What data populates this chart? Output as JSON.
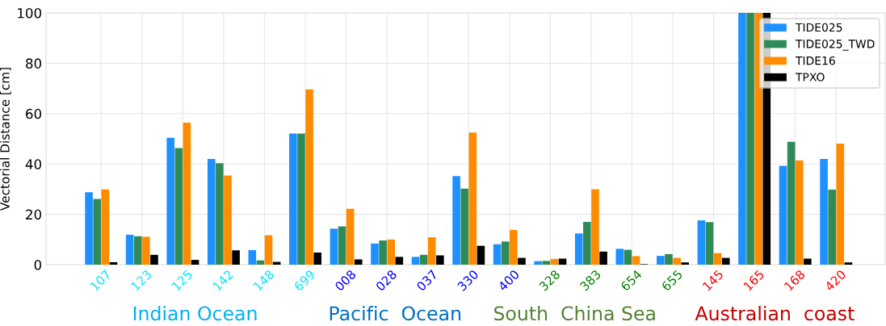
{
  "chart_data": {
    "type": "bar",
    "ylabel": "Vectorial Distance [cm]",
    "categories": [
      "107",
      "123",
      "125",
      "142",
      "148",
      "699",
      "008",
      "028",
      "037",
      "330",
      "400",
      "328",
      "383",
      "654",
      "655",
      "145",
      "165",
      "168",
      "420"
    ],
    "series": [
      {
        "name": "TIDE025",
        "color": "#1e90ff",
        "values": [
          28.8,
          11.9,
          50.4,
          42.0,
          5.8,
          52.1,
          14.3,
          8.4,
          3.1,
          35.2,
          8.1,
          1.4,
          12.4,
          6.3,
          3.5,
          17.6,
          100,
          39.3,
          42.0
        ]
      },
      {
        "name": "TIDE025_TWD",
        "color": "#2e8b57",
        "values": [
          26.1,
          11.3,
          46.3,
          40.3,
          1.7,
          52.1,
          15.2,
          9.6,
          3.9,
          30.2,
          9.2,
          1.5,
          17.0,
          5.9,
          4.2,
          16.9,
          100,
          48.8,
          29.8
        ]
      },
      {
        "name": "TIDE16",
        "color": "#ff8c00",
        "values": [
          29.9,
          11.1,
          56.4,
          35.4,
          11.7,
          69.6,
          22.2,
          10.0,
          10.9,
          52.5,
          13.8,
          2.3,
          30.0,
          3.4,
          2.7,
          4.6,
          100,
          41.4,
          48.1
        ]
      },
      {
        "name": "TPXO",
        "color": "#000000",
        "values": [
          1.0,
          3.9,
          1.9,
          5.7,
          1.1,
          4.8,
          2.1,
          3.1,
          3.7,
          7.5,
          2.7,
          2.4,
          5.2,
          0.2,
          0.9,
          2.7,
          100,
          2.4,
          0.9
        ]
      }
    ],
    "ylim": [
      0,
      100
    ],
    "yticks": [
      0,
      20,
      40,
      60,
      80,
      100
    ],
    "grid": true,
    "legend": "top right",
    "annotations": [
      "Indian Ocean",
      "Pacific  Ocean",
      "South  China Sea",
      "Australian  coast"
    ]
  }
}
